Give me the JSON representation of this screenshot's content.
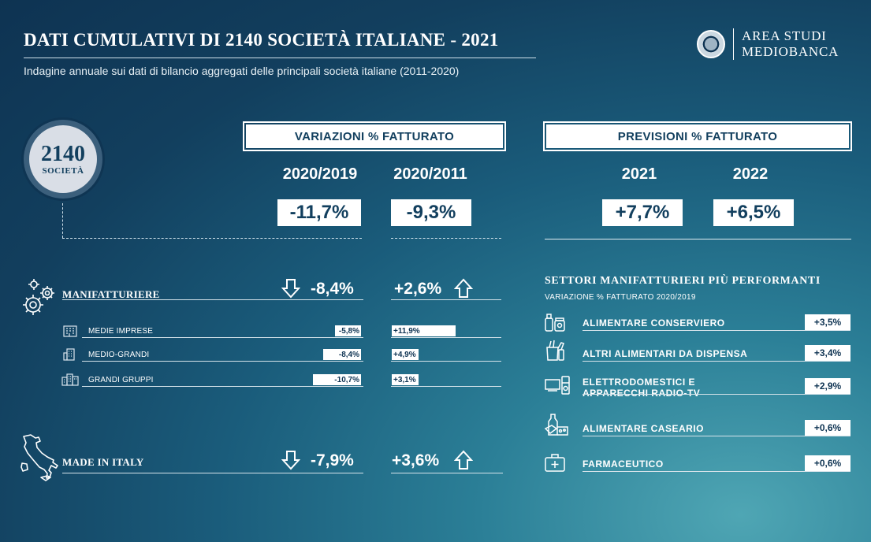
{
  "header": {
    "title": "DATI CUMULATIVI DI 2140 SOCIETÀ ITALIANE - 2021",
    "subtitle": "Indagine annuale sui dati di bilancio aggregati delle principali società italiane (2011-2020)",
    "logo_line1": "AREA STUDI",
    "logo_line2": "MEDIOBANCA"
  },
  "badge": {
    "number": "2140",
    "label": "SOCIETÀ"
  },
  "variazioni": {
    "header": "VARIAZIONI % FATTURATO",
    "col1_year": "2020/2019",
    "col2_year": "2020/2011",
    "col1_value": "-11,7%",
    "col2_value": "-9,3%"
  },
  "previsioni": {
    "header": "PREVISIONI % FATTURATO",
    "col1_year": "2021",
    "col2_year": "2022",
    "col1_value": "+7,7%",
    "col2_value": "+6,5%"
  },
  "manifatturiere": {
    "label": "MANIFATTURIERE",
    "value_2019": "-8,4%",
    "value_2011": "+2,6%",
    "rows": [
      {
        "label": "MEDIE IMPRESE",
        "v2019": "-5,8%",
        "v2019_num": -5.8,
        "v2011": "+11,9%",
        "v2011_num": 11.9
      },
      {
        "label": "MEDIO-GRANDI",
        "v2019": "-8,4%",
        "v2019_num": -8.4,
        "v2011": "+4,9%",
        "v2011_num": 4.9
      },
      {
        "label": "GRANDI GRUPPI",
        "v2019": "-10,7%",
        "v2019_num": -10.7,
        "v2011": "+3,1%",
        "v2011_num": 3.1
      }
    ]
  },
  "made_in_italy": {
    "label": "MADE IN ITALY",
    "value_2019": "-7,9%",
    "value_2011": "+3,6%"
  },
  "settori": {
    "title": "SETTORI MANIFATTURIERI PIÙ PERFORMANTI",
    "subtitle": "VARIAZIONE % FATTURATO 2020/2019",
    "items": [
      {
        "label1": "ALIMENTARE CONSERVIERO",
        "label2": "",
        "value": "+3,5%",
        "icon": "jars-icon"
      },
      {
        "label1": "ALTRI ALIMENTARI DA DISPENSA",
        "label2": "",
        "value": "+3,4%",
        "icon": "pantry-bag-icon"
      },
      {
        "label1": "ELETTRODOMESTICI E",
        "label2": "APPARECCHI RADIO-TV",
        "value": "+2,9%",
        "icon": "appliances-icon"
      },
      {
        "label1": "ALIMENTARE CASEARIO",
        "label2": "",
        "value": "+0,6%",
        "icon": "dairy-icon"
      },
      {
        "label1": "FARMACEUTICO",
        "label2": "",
        "value": "+0,6%",
        "icon": "medkit-icon"
      }
    ]
  }
}
